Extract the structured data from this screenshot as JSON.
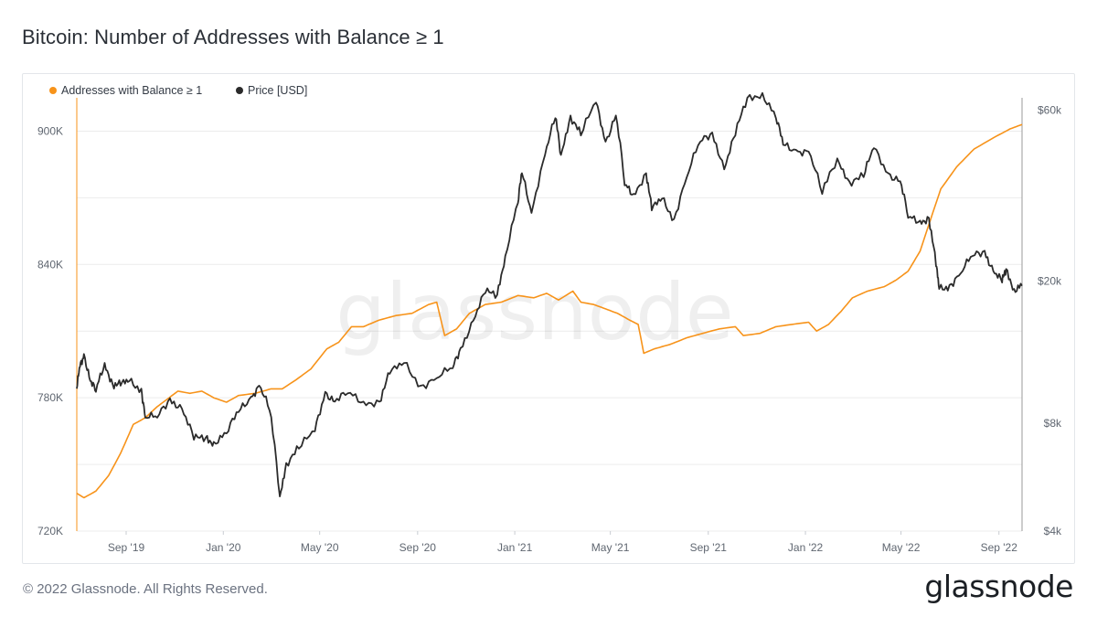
{
  "header": {
    "title": "Bitcoin: Number of Addresses with Balance ≥ 1"
  },
  "footer": {
    "copyright": "© 2022 Glassnode. All Rights Reserved.",
    "logo_text": "glassnode"
  },
  "watermark": "glassnode",
  "colors": {
    "addresses": "#f7931a",
    "price": "#2b2b2b",
    "grid": "#ececec"
  },
  "chart_data": {
    "type": "line",
    "title": "Bitcoin: Number of Addresses with Balance ≥ 1",
    "legend_position": "top-left",
    "grid": true,
    "x_range": [
      "2019-07-01",
      "2022-09-30"
    ],
    "x_ticks": [
      "Sep '19",
      "Jan '20",
      "May '20",
      "Sep '20",
      "Jan '21",
      "May '21",
      "Sep '21",
      "Jan '22",
      "May '22",
      "Sep '22"
    ],
    "y_left": {
      "label": "",
      "ticks": [
        "720K",
        "780K",
        "840K",
        "900K"
      ],
      "range": [
        720000,
        915000
      ]
    },
    "y_right": {
      "label": "",
      "scale": "log",
      "ticks": [
        "$4k",
        "$8k",
        "$20k",
        "$60k"
      ],
      "range": [
        4000,
        65000
      ]
    },
    "series": [
      {
        "name": "Addresses with Balance ≥ 1",
        "axis": "left",
        "color": "#f7931a",
        "points": [
          [
            "2019-07-01",
            737000
          ],
          [
            "2019-07-10",
            735000
          ],
          [
            "2019-07-25",
            738000
          ],
          [
            "2019-08-10",
            745000
          ],
          [
            "2019-08-25",
            755000
          ],
          [
            "2019-09-10",
            768000
          ],
          [
            "2019-09-25",
            771000
          ],
          [
            "2019-10-10",
            776000
          ],
          [
            "2019-10-25",
            780000
          ],
          [
            "2019-11-05",
            783000
          ],
          [
            "2019-11-20",
            782000
          ],
          [
            "2019-12-05",
            783000
          ],
          [
            "2019-12-20",
            780000
          ],
          [
            "2020-01-05",
            778000
          ],
          [
            "2020-01-20",
            781000
          ],
          [
            "2020-02-10",
            782000
          ],
          [
            "2020-03-01",
            784000
          ],
          [
            "2020-03-15",
            784000
          ],
          [
            "2020-04-01",
            788000
          ],
          [
            "2020-04-20",
            793000
          ],
          [
            "2020-05-10",
            802000
          ],
          [
            "2020-05-25",
            805000
          ],
          [
            "2020-06-10",
            812000
          ],
          [
            "2020-06-25",
            812000
          ],
          [
            "2020-07-15",
            815000
          ],
          [
            "2020-08-05",
            817000
          ],
          [
            "2020-08-25",
            818000
          ],
          [
            "2020-09-15",
            822000
          ],
          [
            "2020-09-25",
            823000
          ],
          [
            "2020-10-05",
            808000
          ],
          [
            "2020-10-20",
            811000
          ],
          [
            "2020-11-05",
            818000
          ],
          [
            "2020-11-25",
            822000
          ],
          [
            "2020-12-15",
            823000
          ],
          [
            "2021-01-05",
            826000
          ],
          [
            "2021-01-25",
            825000
          ],
          [
            "2021-02-10",
            827000
          ],
          [
            "2021-02-25",
            824000
          ],
          [
            "2021-03-15",
            828000
          ],
          [
            "2021-03-25",
            823000
          ],
          [
            "2021-04-10",
            822000
          ],
          [
            "2021-04-25",
            820000
          ],
          [
            "2021-05-10",
            818000
          ],
          [
            "2021-05-25",
            815000
          ],
          [
            "2021-06-05",
            813000
          ],
          [
            "2021-06-12",
            800000
          ],
          [
            "2021-06-25",
            802000
          ],
          [
            "2021-07-15",
            804000
          ],
          [
            "2021-08-05",
            807000
          ],
          [
            "2021-08-25",
            809000
          ],
          [
            "2021-09-15",
            811000
          ],
          [
            "2021-10-05",
            812000
          ],
          [
            "2021-10-15",
            808000
          ],
          [
            "2021-11-05",
            809000
          ],
          [
            "2021-11-25",
            812000
          ],
          [
            "2021-12-15",
            813000
          ],
          [
            "2022-01-05",
            814000
          ],
          [
            "2022-01-15",
            810000
          ],
          [
            "2022-01-30",
            813000
          ],
          [
            "2022-02-15",
            819000
          ],
          [
            "2022-03-01",
            825000
          ],
          [
            "2022-03-20",
            828000
          ],
          [
            "2022-04-10",
            830000
          ],
          [
            "2022-04-25",
            833000
          ],
          [
            "2022-05-10",
            837000
          ],
          [
            "2022-05-25",
            846000
          ],
          [
            "2022-06-05",
            858000
          ],
          [
            "2022-06-20",
            874000
          ],
          [
            "2022-07-10",
            884000
          ],
          [
            "2022-08-01",
            892000
          ],
          [
            "2022-08-25",
            897000
          ],
          [
            "2022-09-15",
            901000
          ],
          [
            "2022-09-30",
            903000
          ]
        ]
      },
      {
        "name": "Price [USD]",
        "axis": "right",
        "color": "#2b2b2b",
        "points": [
          [
            "2019-07-01",
            10000
          ],
          [
            "2019-07-05",
            11500
          ],
          [
            "2019-07-10",
            12500
          ],
          [
            "2019-07-18",
            10500
          ],
          [
            "2019-07-25",
            9800
          ],
          [
            "2019-08-05",
            11800
          ],
          [
            "2019-08-15",
            10300
          ],
          [
            "2019-08-25",
            10200
          ],
          [
            "2019-09-05",
            10500
          ],
          [
            "2019-09-20",
            10000
          ],
          [
            "2019-09-25",
            8300
          ],
          [
            "2019-10-10",
            8300
          ],
          [
            "2019-10-26",
            9400
          ],
          [
            "2019-11-10",
            8800
          ],
          [
            "2019-11-25",
            7200
          ],
          [
            "2019-12-10",
            7300
          ],
          [
            "2019-12-20",
            7100
          ],
          [
            "2020-01-05",
            7500
          ],
          [
            "2020-01-20",
            8600
          ],
          [
            "2020-02-05",
            9500
          ],
          [
            "2020-02-15",
            10200
          ],
          [
            "2020-02-28",
            8700
          ],
          [
            "2020-03-12",
            5000
          ],
          [
            "2020-03-20",
            6200
          ],
          [
            "2020-04-05",
            6800
          ],
          [
            "2020-04-25",
            7600
          ],
          [
            "2020-05-08",
            9800
          ],
          [
            "2020-05-20",
            9200
          ],
          [
            "2020-06-05",
            9700
          ],
          [
            "2020-06-25",
            9200
          ],
          [
            "2020-07-15",
            9200
          ],
          [
            "2020-07-28",
            11000
          ],
          [
            "2020-08-15",
            11800
          ],
          [
            "2020-09-05",
            10200
          ],
          [
            "2020-09-25",
            10700
          ],
          [
            "2020-10-15",
            11400
          ],
          [
            "2020-10-25",
            13000
          ],
          [
            "2020-11-10",
            15500
          ],
          [
            "2020-11-25",
            18500
          ],
          [
            "2020-12-10",
            18300
          ],
          [
            "2020-12-20",
            23500
          ],
          [
            "2021-01-05",
            33000
          ],
          [
            "2021-01-10",
            40000
          ],
          [
            "2021-01-22",
            31000
          ],
          [
            "2021-02-08",
            45000
          ],
          [
            "2021-02-21",
            57000
          ],
          [
            "2021-02-28",
            45000
          ],
          [
            "2021-03-12",
            58000
          ],
          [
            "2021-03-25",
            51000
          ],
          [
            "2021-04-13",
            63000
          ],
          [
            "2021-04-25",
            49000
          ],
          [
            "2021-05-08",
            58000
          ],
          [
            "2021-05-19",
            37000
          ],
          [
            "2021-05-30",
            35000
          ],
          [
            "2021-06-15",
            40000
          ],
          [
            "2021-06-22",
            31500
          ],
          [
            "2021-07-05",
            34000
          ],
          [
            "2021-07-20",
            29800
          ],
          [
            "2021-08-05",
            39000
          ],
          [
            "2021-08-22",
            49000
          ],
          [
            "2021-09-06",
            52000
          ],
          [
            "2021-09-21",
            41000
          ],
          [
            "2021-10-05",
            51000
          ],
          [
            "2021-10-20",
            65000
          ],
          [
            "2021-11-08",
            67000
          ],
          [
            "2021-11-25",
            57000
          ],
          [
            "2021-12-04",
            48000
          ],
          [
            "2021-12-20",
            46500
          ],
          [
            "2022-01-05",
            46000
          ],
          [
            "2022-01-22",
            35000
          ],
          [
            "2022-02-10",
            44000
          ],
          [
            "2022-02-25",
            38000
          ],
          [
            "2022-03-15",
            39000
          ],
          [
            "2022-03-28",
            47000
          ],
          [
            "2022-04-15",
            40000
          ],
          [
            "2022-04-30",
            38000
          ],
          [
            "2022-05-10",
            30000
          ],
          [
            "2022-05-25",
            29500
          ],
          [
            "2022-06-05",
            30000
          ],
          [
            "2022-06-14",
            22000
          ],
          [
            "2022-06-18",
            19000
          ],
          [
            "2022-07-01",
            19500
          ],
          [
            "2022-07-15",
            21000
          ],
          [
            "2022-07-30",
            23500
          ],
          [
            "2022-08-14",
            24300
          ],
          [
            "2022-08-25",
            21300
          ],
          [
            "2022-09-05",
            19800
          ],
          [
            "2022-09-10",
            21600
          ],
          [
            "2022-09-20",
            19000
          ],
          [
            "2022-09-30",
            19400
          ]
        ]
      }
    ]
  }
}
